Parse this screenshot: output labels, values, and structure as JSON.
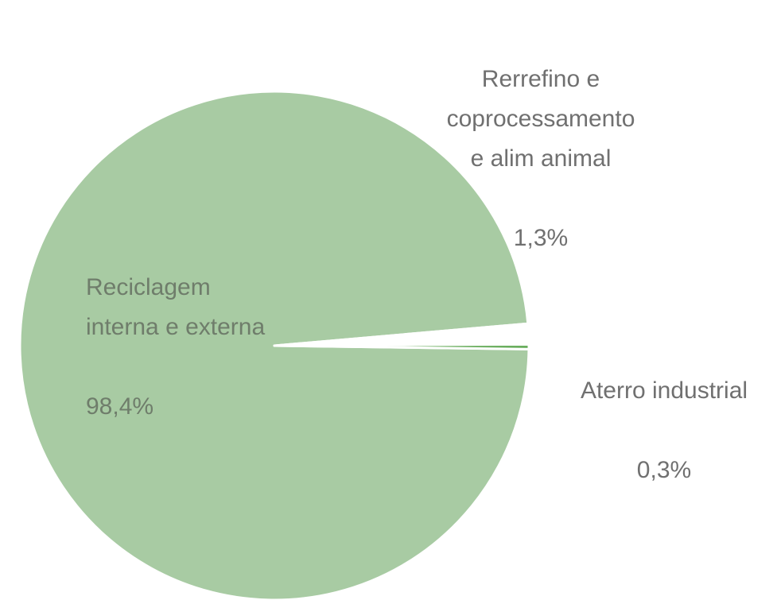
{
  "chart_data": {
    "type": "pie",
    "categories": [
      "Reciclagem\ninterna e externa",
      "Rerrefino e\ncoprocessamento\ne alim animal",
      "Aterro industrial"
    ],
    "values": [
      98.4,
      1.3,
      0.3
    ],
    "value_labels": [
      "98,4%",
      "1,3%",
      "0,3%"
    ],
    "colors": [
      "#a8cba3",
      "#ffffff",
      "#6aae5e"
    ]
  }
}
